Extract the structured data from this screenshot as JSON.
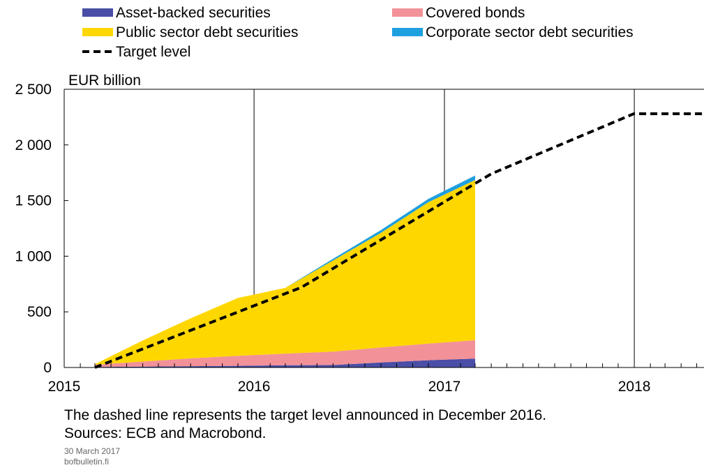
{
  "chart_data": {
    "type": "area",
    "ylabel": "EUR billion",
    "ylim": [
      0,
      2500
    ],
    "yticks": [
      {
        "value": 0,
        "label": "0"
      },
      {
        "value": 500,
        "label": "500"
      },
      {
        "value": 1000,
        "label": "1 000"
      },
      {
        "value": 1500,
        "label": "1 500"
      },
      {
        "value": 2000,
        "label": "2 000"
      },
      {
        "value": 2500,
        "label": "2 500"
      }
    ],
    "xlim": [
      "2015-01-01",
      "2018-05-15"
    ],
    "xticks": [
      {
        "value": "2015-01-01",
        "label": "2015"
      },
      {
        "value": "2016-01-01",
        "label": "2016"
      },
      {
        "value": "2017-01-01",
        "label": "2017"
      },
      {
        "value": "2018-01-01",
        "label": "2018"
      }
    ],
    "grid": "vertical-yearly",
    "legend_position": "top",
    "stacked": true,
    "x": [
      "2015-03-01",
      "2015-06-01",
      "2015-09-01",
      "2015-12-01",
      "2016-03-01",
      "2016-06-01",
      "2016-09-01",
      "2016-12-01",
      "2017-03-01"
    ],
    "series": [
      {
        "name": "Asset-backed securities",
        "color": "#4a4ea6",
        "values": [
          5,
          8,
          12,
          15,
          20,
          22,
          45,
          65,
          80
        ]
      },
      {
        "name": "Covered bonds",
        "color": "#f29198",
        "values": [
          20,
          45,
          70,
          90,
          105,
          120,
          135,
          150,
          165
        ]
      },
      {
        "name": "Public sector debt securities",
        "color": "#ffd700",
        "values": [
          5,
          190,
          360,
          520,
          590,
          820,
          1030,
          1270,
          1440
        ]
      },
      {
        "name": "Corporate sector debt securities",
        "color": "#1e9fe0",
        "values": [
          0,
          0,
          0,
          0,
          0,
          15,
          25,
          30,
          40
        ]
      }
    ],
    "target_level": {
      "name": "Target level",
      "color": "#000000",
      "points": [
        {
          "x": "2015-03-01",
          "y": 0
        },
        {
          "x": "2016-04-01",
          "y": 720
        },
        {
          "x": "2017-04-01",
          "y": 1740
        },
        {
          "x": "2017-12-31",
          "y": 2280
        },
        {
          "x": "2018-05-15",
          "y": 2280
        }
      ]
    }
  },
  "notes": {
    "line1": "The dashed line represents the target level announced in December 2016.",
    "line2": "Sources: ECB and Macrobond.",
    "date": "30 March 2017",
    "site": "bofbulletin.fi"
  }
}
